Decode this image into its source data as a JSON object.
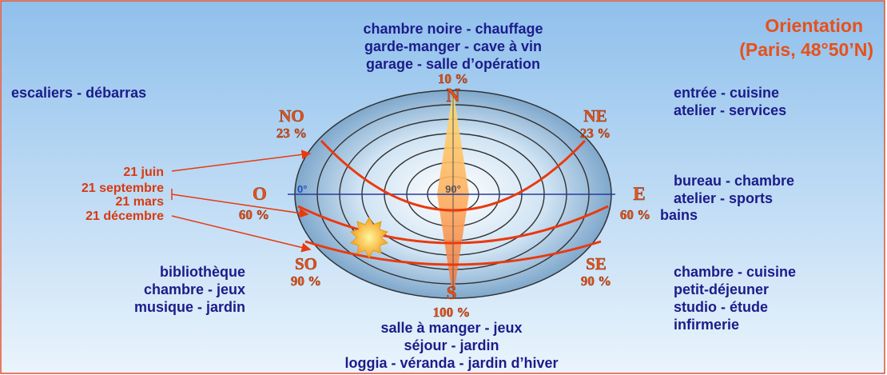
{
  "title": {
    "line1": "Orientation",
    "line2": "(Paris, 48°50’N)"
  },
  "directions": {
    "N": {
      "label": "N",
      "percent": "10 %",
      "uses": [
        "chambre noire - chauffage",
        "garde-manger - cave à vin",
        "garage - salle d’opération"
      ]
    },
    "NO": {
      "label": "NO",
      "percent": "23 %",
      "uses": [
        "escaliers - débarras"
      ]
    },
    "NE": {
      "label": "NE",
      "percent": "23 %",
      "uses": [
        "entrée - cuisine",
        "atelier - services"
      ]
    },
    "O": {
      "label": "O",
      "percent": "60 %"
    },
    "E": {
      "label": "E",
      "percent": "60 %",
      "uses": [
        "bureau - chambre",
        "atelier - sports",
        "bains"
      ]
    },
    "SO": {
      "label": "SO",
      "percent": "90 %",
      "uses": [
        "bibliothèque",
        "chambre - jeux",
        "musique - jardin"
      ]
    },
    "SE": {
      "label": "SE",
      "percent": "90 %",
      "uses": [
        "chambre - cuisine",
        "petit-déjeuner",
        "studio - étude",
        "infirmerie"
      ]
    },
    "S": {
      "label": "S",
      "percent": "100 %",
      "uses": [
        "salle à manger - jeux",
        "séjour - jardin",
        "loggia - véranda - jardin d’hiver"
      ]
    }
  },
  "dates": [
    "21 juin",
    "21 septembre",
    "21 mars",
    "21 décembre"
  ],
  "disk": {
    "horizon": "0°",
    "zenith": "90°"
  }
}
